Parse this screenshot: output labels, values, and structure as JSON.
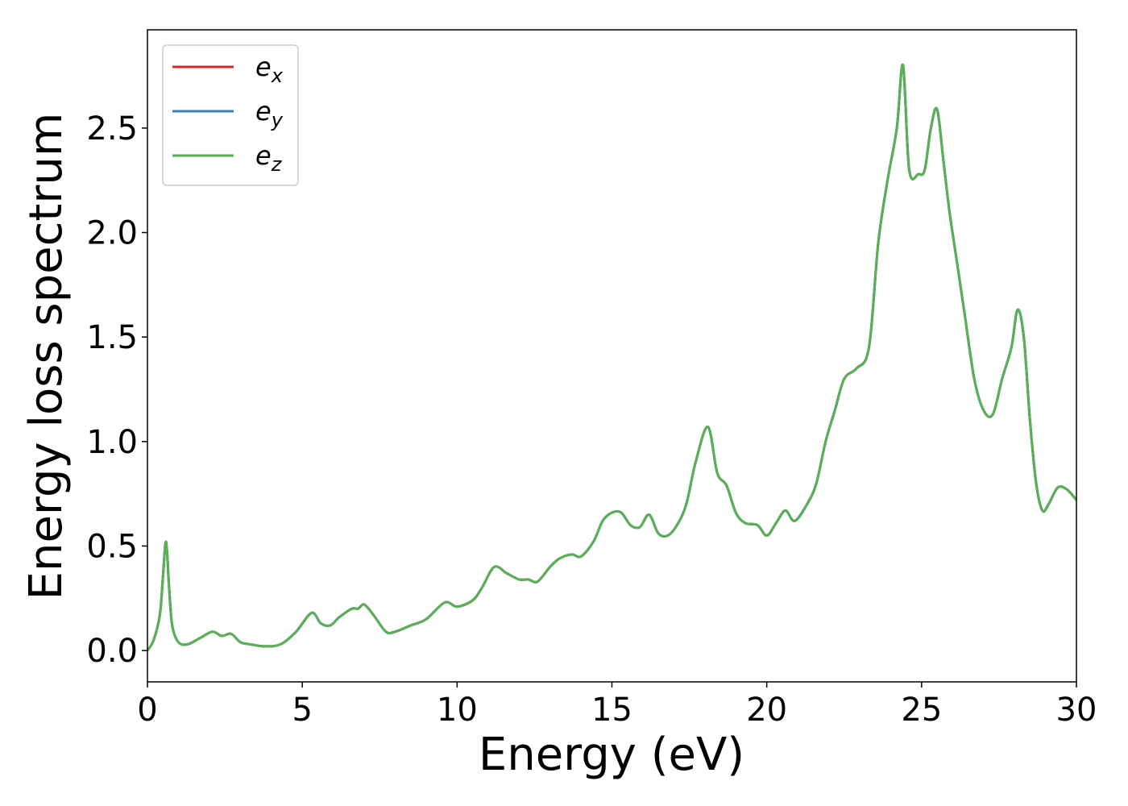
{
  "chart_data": {
    "type": "line",
    "xlabel": "Energy (eV)",
    "ylabel": "Energy loss spectrum",
    "xlim": [
      0,
      30
    ],
    "ylim": [
      -0.15,
      2.97
    ],
    "xticks": [
      0,
      5,
      10,
      15,
      20,
      25,
      30
    ],
    "xtick_labels": [
      "0",
      "5",
      "10",
      "15",
      "20",
      "25",
      "30"
    ],
    "yticks": [
      0.0,
      0.5,
      1.0,
      1.5,
      2.0,
      2.5
    ],
    "ytick_labels": [
      "0.0",
      "0.5",
      "1.0",
      "1.5",
      "2.0",
      "2.5"
    ],
    "grid": false,
    "legend_position": "top-left",
    "legend": [
      {
        "base": "e",
        "sub": "x",
        "color": "#d62728"
      },
      {
        "base": "e",
        "sub": "y",
        "color": "#3a7fba"
      },
      {
        "base": "e",
        "sub": "z",
        "color": "#59b055"
      }
    ],
    "series": [
      {
        "color": "#d62728",
        "x": [
          0,
          0.2,
          0.4,
          0.5,
          0.6,
          0.7,
          0.8,
          1.0,
          1.3,
          1.7,
          2.1,
          2.4,
          2.7,
          3.0,
          3.3,
          3.8,
          4.3,
          4.8,
          5.3,
          5.6,
          5.9,
          6.2,
          6.6,
          6.8,
          7.0,
          7.3,
          7.7,
          8.0,
          8.5,
          9.0,
          9.6,
          10.0,
          10.5,
          10.8,
          11.2,
          11.6,
          12.0,
          12.3,
          12.6,
          13.0,
          13.3,
          13.7,
          14.0,
          14.4,
          14.7,
          15.0,
          15.3,
          15.6,
          15.9,
          16.2,
          16.5,
          16.8,
          17.1,
          17.4,
          17.7,
          18.1,
          18.4,
          18.7,
          19.0,
          19.3,
          19.7,
          20.0,
          20.3,
          20.6,
          20.9,
          21.3,
          21.6,
          21.9,
          22.2,
          22.5,
          22.9,
          23.3,
          23.6,
          23.9,
          24.2,
          24.4,
          24.6,
          24.9,
          25.1,
          25.3,
          25.5,
          25.7,
          25.9,
          26.1,
          26.4,
          26.7,
          27.0,
          27.3,
          27.6,
          27.9,
          28.1,
          28.3,
          28.5,
          28.7,
          28.9,
          29.1,
          29.4,
          29.7,
          30.0
        ],
        "y": [
          0.0,
          0.05,
          0.17,
          0.35,
          0.52,
          0.3,
          0.12,
          0.04,
          0.03,
          0.06,
          0.09,
          0.07,
          0.08,
          0.04,
          0.03,
          0.02,
          0.03,
          0.09,
          0.18,
          0.13,
          0.12,
          0.16,
          0.2,
          0.2,
          0.22,
          0.17,
          0.09,
          0.09,
          0.12,
          0.15,
          0.23,
          0.21,
          0.24,
          0.3,
          0.4,
          0.37,
          0.34,
          0.34,
          0.33,
          0.4,
          0.44,
          0.46,
          0.45,
          0.52,
          0.62,
          0.66,
          0.66,
          0.6,
          0.59,
          0.65,
          0.56,
          0.55,
          0.6,
          0.7,
          0.9,
          1.07,
          0.85,
          0.79,
          0.66,
          0.61,
          0.6,
          0.55,
          0.61,
          0.67,
          0.62,
          0.7,
          0.8,
          1.0,
          1.15,
          1.3,
          1.35,
          1.45,
          1.95,
          2.25,
          2.5,
          2.8,
          2.3,
          2.28,
          2.3,
          2.5,
          2.59,
          2.35,
          2.1,
          1.9,
          1.6,
          1.3,
          1.15,
          1.13,
          1.3,
          1.45,
          1.63,
          1.5,
          1.1,
          0.8,
          0.67,
          0.7,
          0.78,
          0.77,
          0.72
        ]
      },
      {
        "color": "#3a7fba",
        "x": [
          0,
          0.2,
          0.4,
          0.5,
          0.6,
          0.7,
          0.8,
          1.0,
          1.3,
          1.7,
          2.1,
          2.4,
          2.7,
          3.0,
          3.3,
          3.8,
          4.3,
          4.8,
          5.3,
          5.6,
          5.9,
          6.2,
          6.6,
          6.8,
          7.0,
          7.3,
          7.7,
          8.0,
          8.5,
          9.0,
          9.6,
          10.0,
          10.5,
          10.8,
          11.2,
          11.6,
          12.0,
          12.3,
          12.6,
          13.0,
          13.3,
          13.7,
          14.0,
          14.4,
          14.7,
          15.0,
          15.3,
          15.6,
          15.9,
          16.2,
          16.5,
          16.8,
          17.1,
          17.4,
          17.7,
          18.1,
          18.4,
          18.7,
          19.0,
          19.3,
          19.7,
          20.0,
          20.3,
          20.6,
          20.9,
          21.3,
          21.6,
          21.9,
          22.2,
          22.5,
          22.9,
          23.3,
          23.6,
          23.9,
          24.2,
          24.4,
          24.6,
          24.9,
          25.1,
          25.3,
          25.5,
          25.7,
          25.9,
          26.1,
          26.4,
          26.7,
          27.0,
          27.3,
          27.6,
          27.9,
          28.1,
          28.3,
          28.5,
          28.7,
          28.9,
          29.1,
          29.4,
          29.7,
          30.0
        ],
        "y": [
          0.0,
          0.05,
          0.17,
          0.35,
          0.52,
          0.3,
          0.12,
          0.04,
          0.03,
          0.06,
          0.09,
          0.07,
          0.08,
          0.04,
          0.03,
          0.02,
          0.03,
          0.09,
          0.18,
          0.13,
          0.12,
          0.16,
          0.2,
          0.2,
          0.22,
          0.17,
          0.09,
          0.09,
          0.12,
          0.15,
          0.23,
          0.21,
          0.24,
          0.3,
          0.4,
          0.37,
          0.34,
          0.34,
          0.33,
          0.4,
          0.44,
          0.46,
          0.45,
          0.52,
          0.62,
          0.66,
          0.66,
          0.6,
          0.59,
          0.65,
          0.56,
          0.55,
          0.6,
          0.7,
          0.9,
          1.07,
          0.85,
          0.79,
          0.66,
          0.61,
          0.6,
          0.55,
          0.61,
          0.67,
          0.62,
          0.7,
          0.8,
          1.0,
          1.15,
          1.3,
          1.35,
          1.45,
          1.95,
          2.25,
          2.5,
          2.8,
          2.3,
          2.28,
          2.3,
          2.5,
          2.59,
          2.35,
          2.1,
          1.9,
          1.6,
          1.3,
          1.15,
          1.13,
          1.3,
          1.45,
          1.63,
          1.5,
          1.1,
          0.8,
          0.67,
          0.7,
          0.78,
          0.77,
          0.72
        ]
      },
      {
        "color": "#59b055",
        "x": [
          0,
          0.2,
          0.4,
          0.5,
          0.6,
          0.7,
          0.8,
          1.0,
          1.3,
          1.7,
          2.1,
          2.4,
          2.7,
          3.0,
          3.3,
          3.8,
          4.3,
          4.8,
          5.3,
          5.6,
          5.9,
          6.2,
          6.6,
          6.8,
          7.0,
          7.3,
          7.7,
          8.0,
          8.5,
          9.0,
          9.6,
          10.0,
          10.5,
          10.8,
          11.2,
          11.6,
          12.0,
          12.3,
          12.6,
          13.0,
          13.3,
          13.7,
          14.0,
          14.4,
          14.7,
          15.0,
          15.3,
          15.6,
          15.9,
          16.2,
          16.5,
          16.8,
          17.1,
          17.4,
          17.7,
          18.1,
          18.4,
          18.7,
          19.0,
          19.3,
          19.7,
          20.0,
          20.3,
          20.6,
          20.9,
          21.3,
          21.6,
          21.9,
          22.2,
          22.5,
          22.9,
          23.3,
          23.6,
          23.9,
          24.2,
          24.4,
          24.6,
          24.9,
          25.1,
          25.3,
          25.5,
          25.7,
          25.9,
          26.1,
          26.4,
          26.7,
          27.0,
          27.3,
          27.6,
          27.9,
          28.1,
          28.3,
          28.5,
          28.7,
          28.9,
          29.1,
          29.4,
          29.7,
          30.0
        ],
        "y": [
          0.0,
          0.05,
          0.17,
          0.35,
          0.52,
          0.3,
          0.12,
          0.04,
          0.03,
          0.06,
          0.09,
          0.07,
          0.08,
          0.04,
          0.03,
          0.02,
          0.03,
          0.09,
          0.18,
          0.13,
          0.12,
          0.16,
          0.2,
          0.2,
          0.22,
          0.17,
          0.09,
          0.09,
          0.12,
          0.15,
          0.23,
          0.21,
          0.24,
          0.3,
          0.4,
          0.37,
          0.34,
          0.34,
          0.33,
          0.4,
          0.44,
          0.46,
          0.45,
          0.52,
          0.62,
          0.66,
          0.66,
          0.6,
          0.59,
          0.65,
          0.56,
          0.55,
          0.6,
          0.7,
          0.9,
          1.07,
          0.85,
          0.79,
          0.66,
          0.61,
          0.6,
          0.55,
          0.61,
          0.67,
          0.62,
          0.7,
          0.8,
          1.0,
          1.15,
          1.3,
          1.35,
          1.45,
          1.95,
          2.25,
          2.5,
          2.8,
          2.3,
          2.28,
          2.3,
          2.5,
          2.59,
          2.35,
          2.1,
          1.9,
          1.6,
          1.3,
          1.15,
          1.13,
          1.3,
          1.45,
          1.63,
          1.5,
          1.1,
          0.8,
          0.67,
          0.7,
          0.78,
          0.77,
          0.72
        ]
      }
    ]
  }
}
